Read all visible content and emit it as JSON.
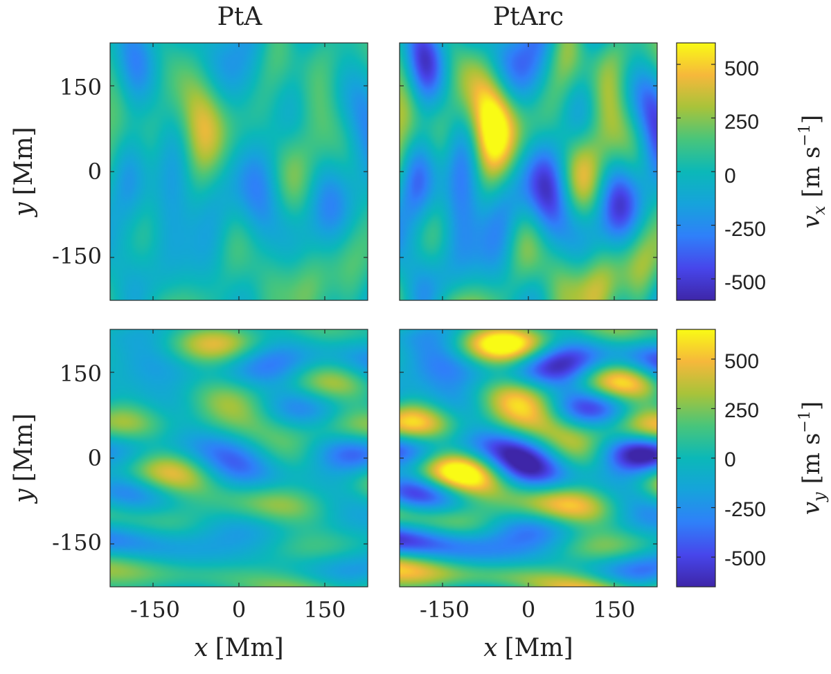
{
  "chart_data": {
    "type": "heatmap",
    "columns": [
      "PtA",
      "PtArc"
    ],
    "xlabel_var": "x",
    "ylabel_var": "y",
    "unit_label": "[Mm]",
    "axis_range": [
      -225,
      225
    ],
    "x_ticks": [
      -150,
      0,
      150
    ],
    "y_ticks": [
      150,
      0,
      -150
    ],
    "x_tick_labels": [
      "-150",
      "0",
      "150"
    ],
    "y_tick_labels": [
      "150",
      "0",
      "-150"
    ],
    "panels": [
      {
        "row": "vx",
        "column": "PtA",
        "amplitude": 0.55,
        "seed": 11,
        "orientation": "vertical"
      },
      {
        "row": "vx",
        "column": "PtArc",
        "amplitude": 1.0,
        "seed": 11,
        "orientation": "vertical"
      },
      {
        "row": "vy",
        "column": "PtA",
        "amplitude": 0.55,
        "seed": 29,
        "orientation": "horizontal"
      },
      {
        "row": "vy",
        "column": "PtArc",
        "amplitude": 1.0,
        "seed": 29,
        "orientation": "horizontal"
      }
    ],
    "colorbars": [
      {
        "row": "vx",
        "var": "v",
        "sub": "x",
        "unit": "[m s",
        "unit_exp": "−1",
        "unit_close": "]",
        "ylim": [
          -600,
          600
        ],
        "ticks": [
          500,
          250,
          0,
          -250,
          -500
        ],
        "tick_labels": [
          "500",
          "250",
          "0",
          "-250",
          "-500"
        ]
      },
      {
        "row": "vy",
        "var": "v",
        "sub": "y",
        "unit": "[m s",
        "unit_exp": "−1",
        "unit_close": "]",
        "ylim": [
          -650,
          650
        ],
        "ticks": [
          500,
          250,
          0,
          -250,
          -500
        ],
        "tick_labels": [
          "500",
          "250",
          "0",
          "-250",
          "-500"
        ]
      }
    ],
    "colormap": "parula"
  }
}
